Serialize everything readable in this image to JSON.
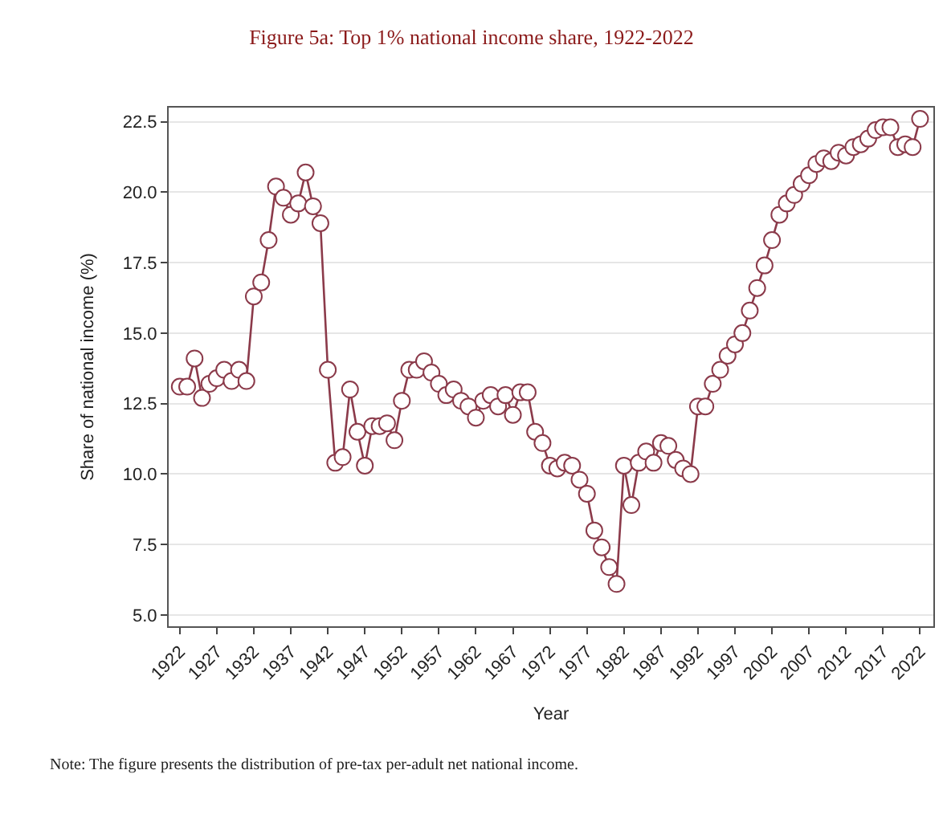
{
  "chart_data": {
    "type": "line",
    "title": "Figure 5a: Top 1% national income share, 1922-2022",
    "xlabel": "Year",
    "ylabel": "Share of national income (%)",
    "annotations": [
      "Note: The figure presents the distribution of pre-tax per-adult net national income."
    ],
    "x": [
      1922,
      1923,
      1924,
      1925,
      1926,
      1927,
      1928,
      1929,
      1930,
      1931,
      1932,
      1933,
      1934,
      1935,
      1936,
      1937,
      1938,
      1939,
      1940,
      1941,
      1942,
      1943,
      1944,
      1945,
      1946,
      1947,
      1948,
      1949,
      1950,
      1951,
      1952,
      1953,
      1954,
      1955,
      1956,
      1957,
      1958,
      1959,
      1960,
      1961,
      1962,
      1963,
      1964,
      1965,
      1966,
      1967,
      1968,
      1969,
      1970,
      1971,
      1972,
      1973,
      1974,
      1975,
      1976,
      1977,
      1978,
      1979,
      1980,
      1981,
      1982,
      1983,
      1984,
      1985,
      1986,
      1987,
      1988,
      1989,
      1990,
      1991,
      1992,
      1993,
      1994,
      1995,
      1996,
      1997,
      1998,
      1999,
      2000,
      2001,
      2002,
      2003,
      2004,
      2005,
      2006,
      2007,
      2008,
      2009,
      2010,
      2011,
      2012,
      2013,
      2014,
      2015,
      2016,
      2017,
      2018,
      2019,
      2020,
      2021,
      2022
    ],
    "series": [
      {
        "color": "#8b3a4a",
        "values": [
          13.1,
          13.1,
          14.1,
          12.7,
          13.2,
          13.4,
          13.7,
          13.3,
          13.7,
          13.3,
          16.3,
          16.8,
          18.3,
          20.2,
          19.8,
          19.2,
          19.6,
          20.7,
          19.5,
          18.9,
          13.7,
          10.4,
          10.6,
          13.0,
          11.5,
          10.3,
          11.7,
          11.7,
          11.8,
          11.2,
          12.6,
          13.7,
          13.7,
          14.0,
          13.6,
          13.2,
          12.8,
          13.0,
          12.6,
          12.4,
          12.0,
          12.6,
          12.8,
          12.4,
          12.8,
          12.1,
          12.9,
          12.9,
          11.5,
          11.1,
          10.3,
          10.2,
          10.4,
          10.3,
          9.8,
          9.3,
          8.0,
          7.4,
          6.7,
          6.1,
          10.3,
          8.9,
          10.4,
          10.8,
          10.4,
          11.1,
          11.0,
          10.5,
          10.2,
          10.0,
          12.4,
          12.4,
          13.2,
          13.7,
          14.2,
          14.6,
          15.0,
          15.8,
          16.6,
          17.4,
          18.3,
          19.2,
          19.6,
          19.9,
          20.3,
          20.6,
          21.0,
          21.2,
          21.1,
          21.4,
          21.3,
          21.6,
          21.7,
          21.9,
          22.2,
          22.3,
          22.3,
          21.6,
          21.7,
          21.6,
          22.6
        ]
      }
    ],
    "xlim": [
      1920.5,
      2023.8
    ],
    "ylim": [
      4.6,
      23.0
    ],
    "xticks": [
      1922,
      1927,
      1932,
      1937,
      1942,
      1947,
      1952,
      1957,
      1962,
      1967,
      1972,
      1977,
      1982,
      1987,
      1992,
      1997,
      2002,
      2007,
      2012,
      2017,
      2022
    ],
    "yticks": [
      {
        "value": 5,
        "label": "5.0"
      },
      {
        "value": 7.5,
        "label": "7.5"
      },
      {
        "value": 10,
        "label": "10.0"
      },
      {
        "value": 12.5,
        "label": "12.5"
      },
      {
        "value": 15,
        "label": "15.0"
      },
      {
        "value": 17.5,
        "label": "17.5"
      },
      {
        "value": 20,
        "label": "20.0"
      },
      {
        "value": 22.5,
        "label": "22.5"
      }
    ],
    "grid": "y",
    "marker": "circle",
    "line_style": "solid"
  }
}
